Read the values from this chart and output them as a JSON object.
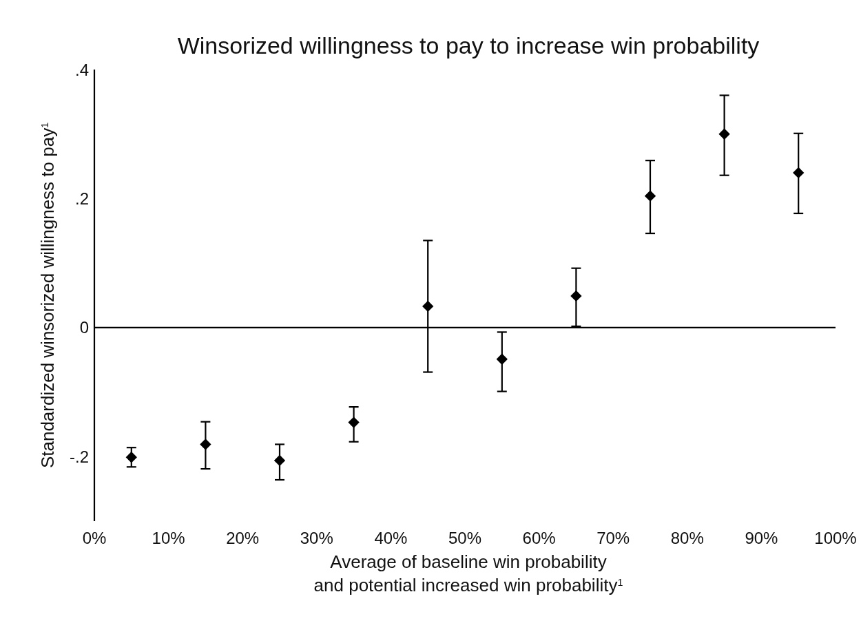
{
  "chart_data": {
    "type": "scatter",
    "title": "Winsorized willingness to pay to increase win probability",
    "xlabel": "Average of baseline win probability\nand potential increased win probability$^{1}$",
    "ylabel": "Standardized winsorized willingness to pay$^{1}$",
    "x": [
      5,
      15,
      25,
      35,
      45,
      55,
      65,
      75,
      85,
      95
    ],
    "series": [
      {
        "color": "#000000",
        "values": [
          -0.201,
          -0.181,
          -0.206,
          -0.147,
          0.033,
          -0.049,
          0.049,
          0.204,
          0.3,
          0.24
        ],
        "errors": [
          [
            -0.216,
            -0.186
          ],
          [
            -0.219,
            -0.146
          ],
          [
            -0.236,
            -0.181
          ],
          [
            -0.177,
            -0.123
          ],
          [
            -0.069,
            0.135
          ],
          [
            -0.099,
            -0.007
          ],
          [
            0.002,
            0.092
          ],
          [
            0.146,
            0.259
          ],
          [
            0.236,
            0.36
          ],
          [
            0.177,
            0.301
          ]
        ]
      }
    ],
    "marker": "diamond",
    "xlim": [
      0,
      100
    ],
    "xticks": [
      {
        "value": 0,
        "label": "0%"
      },
      {
        "value": 10,
        "label": "10%"
      },
      {
        "value": 20,
        "label": "20%"
      },
      {
        "value": 30,
        "label": "30%"
      },
      {
        "value": 40,
        "label": "40%"
      },
      {
        "value": 50,
        "label": "50%"
      },
      {
        "value": 60,
        "label": "60%"
      },
      {
        "value": 70,
        "label": "70%"
      },
      {
        "value": 80,
        "label": "80%"
      },
      {
        "value": 90,
        "label": "90%"
      },
      {
        "value": 100,
        "label": "100%"
      }
    ],
    "ylim": [
      -0.3,
      0.4
    ],
    "yticks": [
      {
        "value": -0.2,
        "label": "-.2"
      },
      0,
      {
        "value": 0.2,
        "label": ".2"
      },
      {
        "value": 0.4,
        "label": ".4"
      }
    ],
    "ref_lines": [
      {
        "axis": "y",
        "value": 0,
        "color": "#000000"
      }
    ],
    "grid": false
  }
}
